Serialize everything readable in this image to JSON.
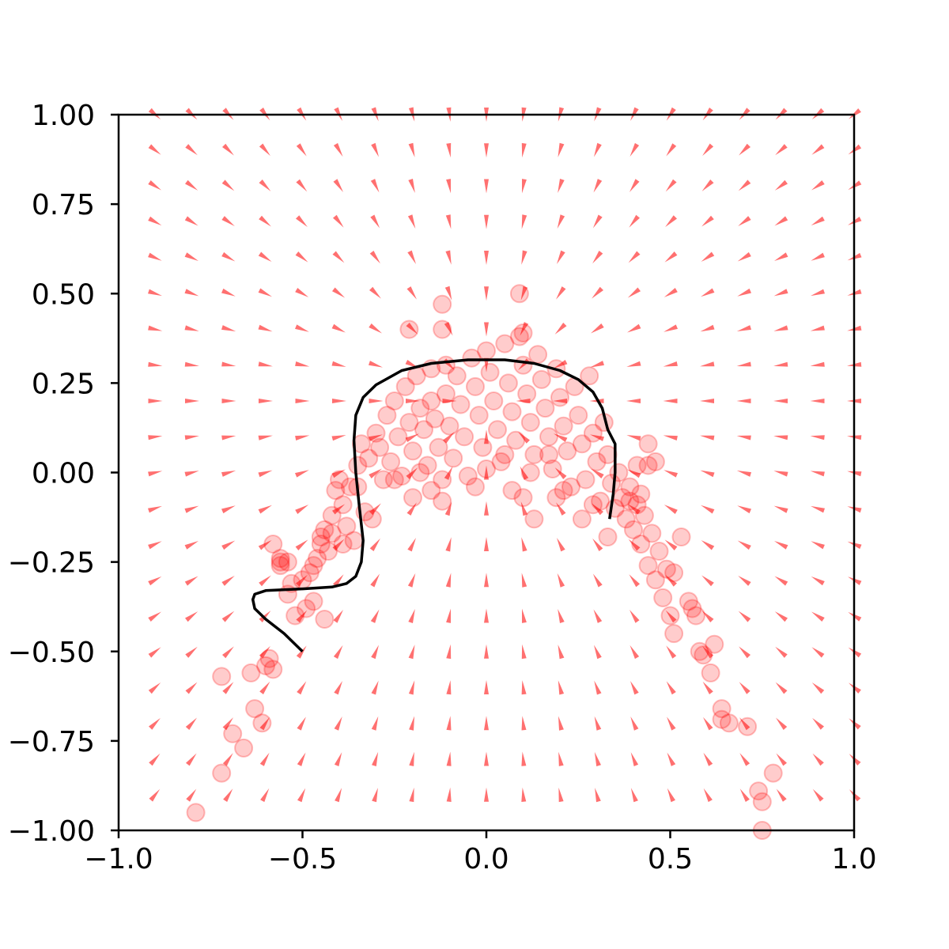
{
  "chart_data": {
    "type": "scatter",
    "title": "",
    "xlabel": "",
    "ylabel": "",
    "xlim": [
      -1.0,
      1.0
    ],
    "ylim": [
      -1.0,
      1.0
    ],
    "grid": false,
    "x_ticks": [
      "−1.0",
      "−0.5",
      "0.0",
      "0.5",
      "1.0"
    ],
    "y_ticks": [
      "−1.00",
      "−0.75",
      "−0.50",
      "−0.25",
      "0.00",
      "0.25",
      "0.50",
      "0.75",
      "1.00"
    ],
    "x_tick_values": [
      -1.0,
      -0.5,
      0.0,
      0.5,
      1.0
    ],
    "y_tick_values": [
      -1.0,
      -0.75,
      -0.5,
      -0.25,
      0.0,
      0.25,
      0.5,
      0.75,
      1.0
    ],
    "colors": {
      "points": "#ff0000",
      "arrows": "#ff7070",
      "trajectory": "#000000"
    },
    "vector_field": {
      "x": [
        -0.9,
        -0.8,
        -0.7,
        -0.6,
        -0.5,
        -0.4,
        -0.3,
        -0.2,
        -0.1,
        0.0,
        0.1,
        0.2,
        0.3,
        0.4,
        0.5,
        0.6,
        0.7,
        0.8,
        0.9,
        1.0
      ],
      "y": [
        1.0,
        0.9,
        0.8,
        0.7,
        0.6,
        0.5,
        0.4,
        0.3,
        0.2,
        0.1,
        0.0,
        -0.1,
        -0.2,
        -0.3,
        -0.4,
        -0.5,
        -0.6,
        -0.7,
        -0.8,
        -0.9
      ],
      "attractor": [
        0.0,
        0.2
      ]
    },
    "series": [
      {
        "type": "scatter",
        "points": [
          [
            -0.79,
            -0.95
          ],
          [
            -0.72,
            -0.84
          ],
          [
            -0.69,
            -0.73
          ],
          [
            -0.66,
            -0.77
          ],
          [
            -0.64,
            -0.56
          ],
          [
            -0.63,
            -0.66
          ],
          [
            -0.61,
            -0.7
          ],
          [
            -0.6,
            -0.54
          ],
          [
            -0.58,
            -0.55
          ],
          [
            -0.72,
            -0.57
          ],
          [
            -0.59,
            -0.52
          ],
          [
            -0.58,
            -0.2
          ],
          [
            -0.56,
            -0.24
          ],
          [
            -0.56,
            -0.26
          ],
          [
            -0.54,
            -0.34
          ],
          [
            -0.53,
            -0.31
          ],
          [
            -0.52,
            -0.4
          ],
          [
            -0.5,
            -0.3
          ],
          [
            -0.49,
            -0.38
          ],
          [
            -0.48,
            -0.28
          ],
          [
            -0.47,
            -0.36
          ],
          [
            -0.46,
            -0.24
          ],
          [
            -0.44,
            -0.41
          ],
          [
            -0.44,
            -0.16
          ],
          [
            -0.43,
            -0.22
          ],
          [
            -0.42,
            -0.12
          ],
          [
            -0.41,
            -0.05
          ],
          [
            -0.4,
            -0.02
          ],
          [
            -0.39,
            -0.09
          ],
          [
            -0.38,
            -0.15
          ],
          [
            -0.37,
            -0.04
          ],
          [
            -0.36,
            -0.19
          ],
          [
            -0.35,
            0.02
          ],
          [
            -0.34,
            0.08
          ],
          [
            -0.33,
            -0.11
          ],
          [
            -0.32,
            0.04
          ],
          [
            -0.31,
            -0.13
          ],
          [
            -0.3,
            0.11
          ],
          [
            -0.29,
            0.07
          ],
          [
            -0.28,
            -0.02
          ],
          [
            -0.27,
            0.16
          ],
          [
            -0.26,
            0.03
          ],
          [
            -0.25,
            0.2
          ],
          [
            -0.24,
            0.1
          ],
          [
            -0.23,
            -0.01
          ],
          [
            -0.22,
            0.24
          ],
          [
            -0.21,
            0.14
          ],
          [
            -0.2,
            0.06
          ],
          [
            -0.2,
            -0.07
          ],
          [
            -0.19,
            0.27
          ],
          [
            -0.18,
            0.18
          ],
          [
            -0.17,
            0.12
          ],
          [
            -0.16,
            0.02
          ],
          [
            -0.15,
            0.29
          ],
          [
            -0.15,
            0.2
          ],
          [
            -0.14,
            0.15
          ],
          [
            -0.13,
            0.07
          ],
          [
            -0.12,
            -0.02
          ],
          [
            -0.11,
            0.3
          ],
          [
            -0.11,
            0.22
          ],
          [
            -0.1,
            0.13
          ],
          [
            -0.09,
            0.04
          ],
          [
            -0.08,
            0.27
          ],
          [
            -0.07,
            0.19
          ],
          [
            -0.06,
            0.1
          ],
          [
            -0.05,
            -0.01
          ],
          [
            -0.04,
            0.32
          ],
          [
            -0.03,
            0.24
          ],
          [
            -0.02,
            0.16
          ],
          [
            -0.01,
            0.07
          ],
          [
            0.0,
            0.34
          ],
          [
            0.01,
            0.28
          ],
          [
            0.02,
            0.2
          ],
          [
            0.03,
            0.12
          ],
          [
            0.04,
            0.03
          ],
          [
            0.05,
            0.36
          ],
          [
            0.06,
            0.25
          ],
          [
            0.07,
            0.17
          ],
          [
            0.08,
            0.09
          ],
          [
            0.09,
            0.38
          ],
          [
            0.1,
            0.3
          ],
          [
            0.11,
            0.22
          ],
          [
            0.12,
            0.14
          ],
          [
            0.13,
            0.05
          ],
          [
            0.14,
            0.33
          ],
          [
            0.15,
            0.26
          ],
          [
            0.16,
            0.18
          ],
          [
            0.17,
            0.1
          ],
          [
            0.18,
            0.01
          ],
          [
            0.19,
            0.29
          ],
          [
            0.2,
            0.21
          ],
          [
            0.21,
            0.13
          ],
          [
            0.22,
            0.06
          ],
          [
            0.23,
            -0.04
          ],
          [
            0.24,
            0.24
          ],
          [
            0.25,
            0.16
          ],
          [
            0.26,
            0.08
          ],
          [
            0.27,
            -0.02
          ],
          [
            0.28,
            0.27
          ],
          [
            0.29,
            0.11
          ],
          [
            0.3,
            0.03
          ],
          [
            0.31,
            -0.08
          ],
          [
            0.32,
            0.14
          ],
          [
            0.33,
            0.05
          ],
          [
            0.34,
            -0.03
          ],
          [
            0.35,
            -0.1
          ],
          [
            0.36,
            0.0
          ],
          [
            0.37,
            -0.07
          ],
          [
            0.38,
            -0.13
          ],
          [
            0.39,
            -0.04
          ],
          [
            0.4,
            -0.16
          ],
          [
            0.41,
            -0.09
          ],
          [
            0.42,
            -0.2
          ],
          [
            0.43,
            -0.12
          ],
          [
            0.44,
            -0.26
          ],
          [
            0.45,
            -0.17
          ],
          [
            0.46,
            -0.3
          ],
          [
            0.47,
            -0.22
          ],
          [
            0.48,
            -0.35
          ],
          [
            0.49,
            -0.27
          ],
          [
            0.5,
            -0.4
          ],
          [
            0.51,
            -0.45
          ],
          [
            0.55,
            -0.36
          ],
          [
            0.56,
            -0.38
          ],
          [
            0.57,
            -0.4
          ],
          [
            0.58,
            -0.5
          ],
          [
            0.59,
            -0.51
          ],
          [
            0.61,
            -0.56
          ],
          [
            0.62,
            -0.48
          ],
          [
            0.64,
            -0.66
          ],
          [
            0.64,
            -0.69
          ],
          [
            0.66,
            -0.7
          ],
          [
            0.71,
            -0.71
          ],
          [
            0.74,
            -0.89
          ],
          [
            0.75,
            -0.92
          ],
          [
            0.78,
            -0.84
          ],
          [
            0.75,
            -1.0
          ],
          [
            -0.47,
            -0.26
          ],
          [
            -0.45,
            -0.2
          ],
          [
            -0.39,
            -0.2
          ],
          [
            -0.21,
            0.4
          ],
          [
            -0.12,
            0.47
          ],
          [
            -0.12,
            0.4
          ],
          [
            0.09,
            0.5
          ],
          [
            0.1,
            0.39
          ],
          [
            0.07,
            -0.05
          ],
          [
            0.1,
            -0.07
          ],
          [
            0.13,
            -0.13
          ],
          [
            0.29,
            -0.09
          ],
          [
            0.33,
            -0.18
          ],
          [
            0.44,
            0.08
          ],
          [
            0.46,
            0.03
          ],
          [
            0.53,
            -0.18
          ],
          [
            0.51,
            -0.28
          ],
          [
            -0.54,
            -0.25
          ],
          [
            -0.56,
            -0.25
          ],
          [
            -0.45,
            -0.18
          ],
          [
            -0.42,
            -0.17
          ],
          [
            -0.35,
            -0.04
          ],
          [
            0.26,
            -0.13
          ],
          [
            0.21,
            -0.05
          ],
          [
            0.19,
            -0.07
          ],
          [
            -0.03,
            -0.04
          ],
          [
            0.0,
            0.01
          ],
          [
            0.05,
            0.05
          ],
          [
            -0.15,
            -0.05
          ],
          [
            -0.12,
            -0.08
          ],
          [
            -0.25,
            -0.02
          ],
          [
            -0.18,
            0.0
          ],
          [
            0.17,
            0.05
          ],
          [
            0.12,
            0.0
          ],
          [
            0.39,
            -0.08
          ],
          [
            0.42,
            -0.06
          ],
          [
            0.44,
            0.02
          ],
          [
            0.41,
            0.02
          ]
        ]
      },
      {
        "type": "line",
        "points": [
          [
            -0.5,
            -0.5
          ],
          [
            -0.55,
            -0.45
          ],
          [
            -0.6,
            -0.41
          ],
          [
            -0.63,
            -0.38
          ],
          [
            -0.635,
            -0.355
          ],
          [
            -0.63,
            -0.34
          ],
          [
            -0.6,
            -0.33
          ],
          [
            -0.5,
            -0.325
          ],
          [
            -0.42,
            -0.32
          ],
          [
            -0.38,
            -0.31
          ],
          [
            -0.355,
            -0.29
          ],
          [
            -0.34,
            -0.25
          ],
          [
            -0.335,
            -0.19
          ],
          [
            -0.345,
            -0.1
          ],
          [
            -0.355,
            0.0
          ],
          [
            -0.36,
            0.09
          ],
          [
            -0.355,
            0.16
          ],
          [
            -0.335,
            0.21
          ],
          [
            -0.3,
            0.245
          ],
          [
            -0.23,
            0.285
          ],
          [
            -0.15,
            0.305
          ],
          [
            -0.05,
            0.315
          ],
          [
            0.05,
            0.315
          ],
          [
            0.13,
            0.305
          ],
          [
            0.2,
            0.285
          ],
          [
            0.25,
            0.26
          ],
          [
            0.29,
            0.225
          ],
          [
            0.315,
            0.18
          ],
          [
            0.33,
            0.12
          ],
          [
            0.35,
            0.08
          ],
          [
            0.35,
            0.0
          ],
          [
            0.345,
            -0.06
          ],
          [
            0.335,
            -0.13
          ]
        ]
      }
    ]
  }
}
